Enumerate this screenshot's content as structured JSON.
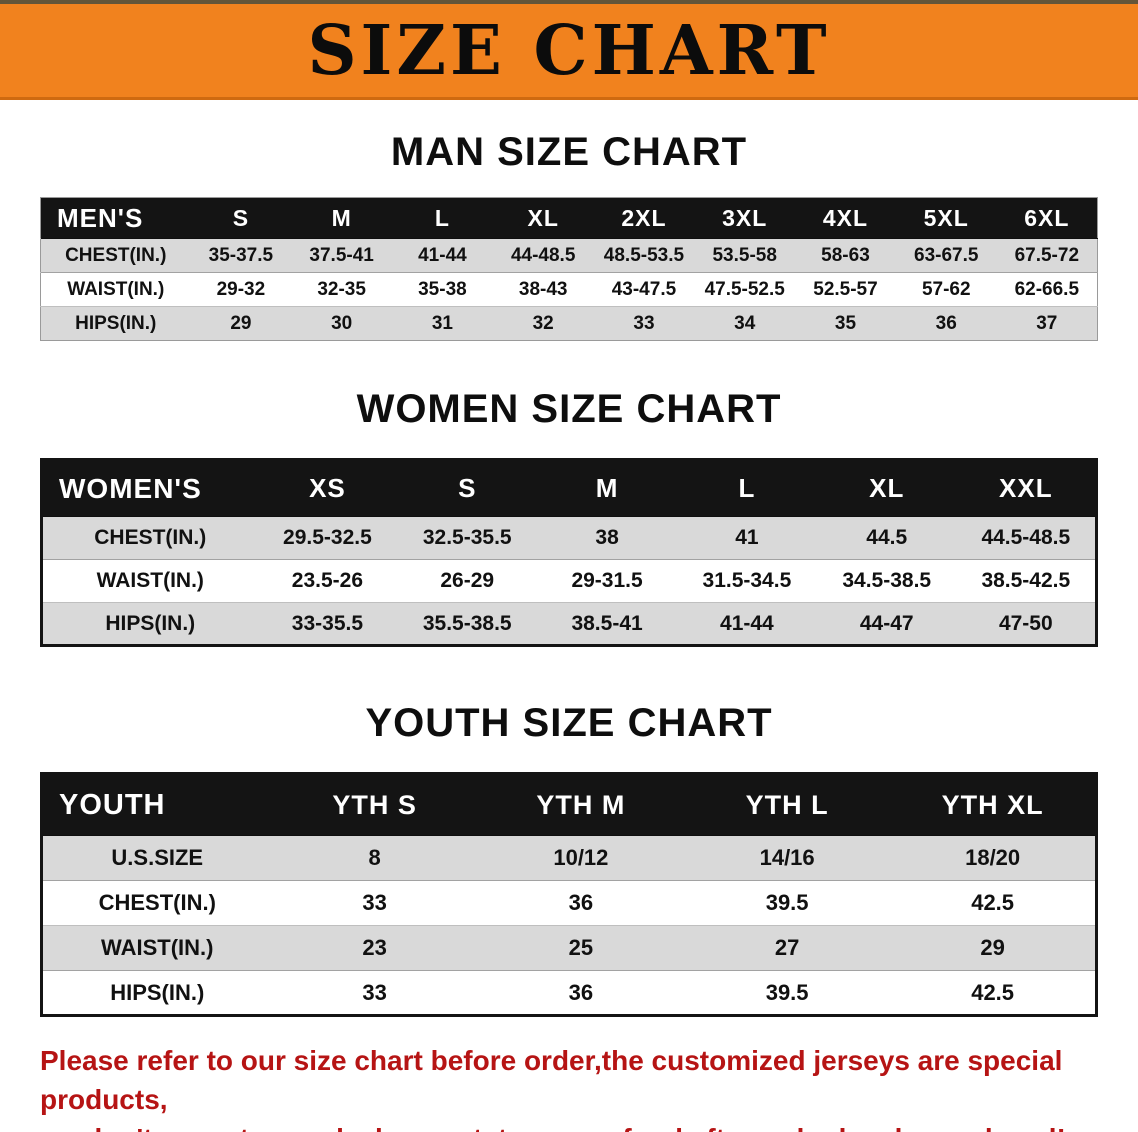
{
  "banner": {
    "title": "SIZE CHART"
  },
  "colors": {
    "banner_bg": "#f1821e",
    "banner_edge_top": "#635539",
    "banner_edge_bottom": "#cf6a10",
    "table_header_bg": "#141414",
    "table_header_text": "#ffffff",
    "row_stripe": "#d9d9d9",
    "table_text": "#111111",
    "notice_text": "#b61414"
  },
  "sections": {
    "men": {
      "heading": "MAN SIZE CHART"
    },
    "women": {
      "heading": "WOMEN SIZE CHART"
    },
    "youth": {
      "heading": "YOUTH SIZE CHART"
    }
  },
  "tables": {
    "men": {
      "header": [
        "MEN'S",
        "S",
        "M",
        "L",
        "XL",
        "2XL",
        "3XL",
        "4XL",
        "5XL",
        "6XL"
      ],
      "rows": [
        [
          "CHEST(IN.)",
          "35-37.5",
          "37.5-41",
          "41-44",
          "44-48.5",
          "48.5-53.5",
          "53.5-58",
          "58-63",
          "63-67.5",
          "67.5-72"
        ],
        [
          "WAIST(IN.)",
          "29-32",
          "32-35",
          "35-38",
          "38-43",
          "43-47.5",
          "47.5-52.5",
          "52.5-57",
          "57-62",
          "62-66.5"
        ],
        [
          "HIPS(IN.)",
          "29",
          "30",
          "31",
          "32",
          "33",
          "34",
          "35",
          "36",
          "37"
        ]
      ]
    },
    "women": {
      "header": [
        "WOMEN'S",
        "XS",
        "S",
        "M",
        "L",
        "XL",
        "XXL"
      ],
      "rows": [
        [
          "CHEST(IN.)",
          "29.5-32.5",
          "32.5-35.5",
          "38",
          "41",
          "44.5",
          "44.5-48.5"
        ],
        [
          "WAIST(IN.)",
          "23.5-26",
          "26-29",
          "29-31.5",
          "31.5-34.5",
          "34.5-38.5",
          "38.5-42.5"
        ],
        [
          "HIPS(IN.)",
          "33-35.5",
          "35.5-38.5",
          "38.5-41",
          "41-44",
          "44-47",
          "47-50"
        ]
      ]
    },
    "youth": {
      "header": [
        "YOUTH",
        "YTH S",
        "YTH M",
        "YTH L",
        "YTH XL"
      ],
      "rows": [
        [
          "U.S.SIZE",
          "8",
          "10/12",
          "14/16",
          "18/20"
        ],
        [
          "CHEST(IN.)",
          "33",
          "36",
          "39.5",
          "42.5"
        ],
        [
          "WAIST(IN.)",
          "23",
          "25",
          "27",
          "29"
        ],
        [
          "HIPS(IN.)",
          "33",
          "36",
          "39.5",
          "42.5"
        ]
      ]
    }
  },
  "notice": {
    "line1": "Please refer to our size chart before order,the customized jerseys are special products,",
    "line2": "we don't accept cancel, change, teturn or refund after order has been placed!"
  }
}
